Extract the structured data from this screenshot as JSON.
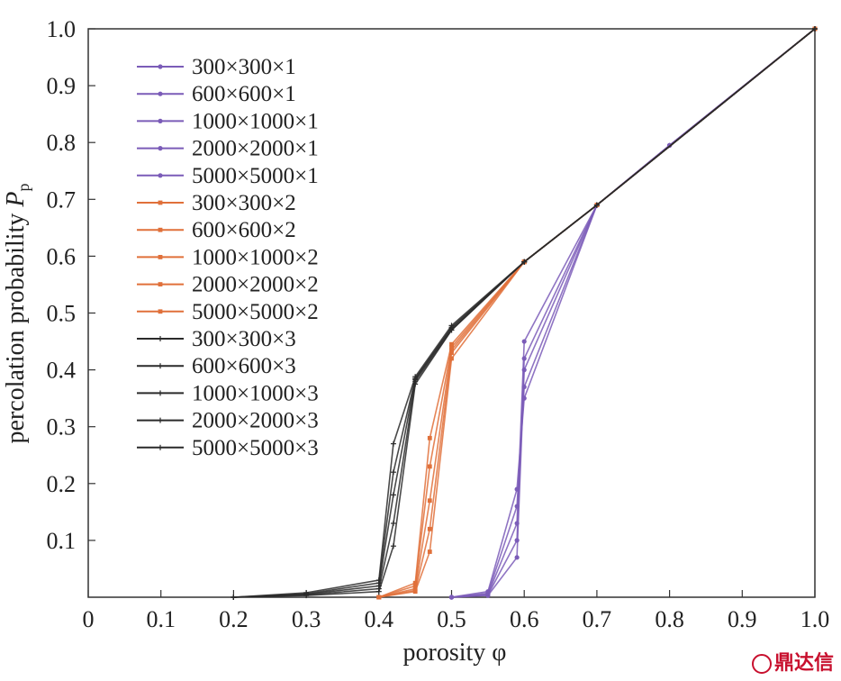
{
  "chart_data": {
    "type": "line",
    "xlabel": "porosity φ",
    "ylabel_main": "percolation probability ",
    "ylabel_symbol": "P",
    "ylabel_subscript": "p",
    "xlim": [
      0,
      1.0
    ],
    "ylim": [
      0,
      1.0
    ],
    "x_ticks": [
      "0",
      "0.1",
      "0.2",
      "0.3",
      "0.4",
      "0.5",
      "0.6",
      "0.7",
      "0.8",
      "0.9",
      "1.0"
    ],
    "y_ticks": [
      "0.1",
      "0.2",
      "0.3",
      "0.4",
      "0.5",
      "0.6",
      "0.7",
      "0.8",
      "0.9",
      "1.0"
    ],
    "grid": false,
    "legend_position": "top-left",
    "colors": {
      "group1": "#7b5cb8",
      "group2": "#e0703a",
      "group3": "#2a2a2a"
    },
    "series": [
      {
        "name": "300×300×1",
        "group": 1,
        "x": [
          0.5,
          0.55,
          0.59,
          0.6,
          0.7,
          0.8,
          1.0
        ],
        "y": [
          0.0,
          0.003,
          0.07,
          0.4,
          0.69,
          0.795,
          1.0
        ]
      },
      {
        "name": "600×600×1",
        "group": 1,
        "x": [
          0.5,
          0.55,
          0.59,
          0.6,
          0.7,
          0.8,
          1.0
        ],
        "y": [
          0.0,
          0.004,
          0.1,
          0.42,
          0.69,
          0.795,
          1.0
        ]
      },
      {
        "name": "1000×1000×1",
        "group": 1,
        "x": [
          0.5,
          0.55,
          0.59,
          0.6,
          0.7,
          0.8,
          1.0
        ],
        "y": [
          0.0,
          0.005,
          0.13,
          0.45,
          0.69,
          0.795,
          1.0
        ]
      },
      {
        "name": "2000×2000×1",
        "group": 1,
        "x": [
          0.5,
          0.55,
          0.59,
          0.6,
          0.7,
          0.8,
          1.0
        ],
        "y": [
          0.0,
          0.007,
          0.16,
          0.37,
          0.69,
          0.795,
          1.0
        ]
      },
      {
        "name": "5000×5000×1",
        "group": 1,
        "x": [
          0.5,
          0.55,
          0.59,
          0.6,
          0.7,
          0.8,
          1.0
        ],
        "y": [
          0.0,
          0.01,
          0.19,
          0.35,
          0.69,
          0.795,
          1.0
        ]
      },
      {
        "name": "300×300×2",
        "group": 2,
        "x": [
          0.4,
          0.45,
          0.47,
          0.5,
          0.6,
          0.7,
          1.0
        ],
        "y": [
          0.0,
          0.01,
          0.08,
          0.42,
          0.59,
          0.69,
          1.0
        ]
      },
      {
        "name": "600×600×2",
        "group": 2,
        "x": [
          0.4,
          0.45,
          0.47,
          0.5,
          0.6,
          0.7,
          1.0
        ],
        "y": [
          0.0,
          0.012,
          0.12,
          0.43,
          0.59,
          0.69,
          1.0
        ]
      },
      {
        "name": "1000×1000×2",
        "group": 2,
        "x": [
          0.4,
          0.45,
          0.47,
          0.5,
          0.6,
          0.7,
          1.0
        ],
        "y": [
          0.0,
          0.015,
          0.17,
          0.435,
          0.59,
          0.69,
          1.0
        ]
      },
      {
        "name": "2000×2000×2",
        "group": 2,
        "x": [
          0.4,
          0.45,
          0.47,
          0.5,
          0.6,
          0.7,
          1.0
        ],
        "y": [
          0.0,
          0.02,
          0.23,
          0.44,
          0.59,
          0.69,
          1.0
        ]
      },
      {
        "name": "5000×5000×2",
        "group": 2,
        "x": [
          0.4,
          0.45,
          0.47,
          0.5,
          0.6,
          0.7,
          1.0
        ],
        "y": [
          0.0,
          0.025,
          0.28,
          0.445,
          0.59,
          0.69,
          1.0
        ]
      },
      {
        "name": "300×300×3",
        "group": 3,
        "x": [
          0.2,
          0.3,
          0.4,
          0.42,
          0.45,
          0.5,
          0.6,
          0.7,
          1.0
        ],
        "y": [
          0.0,
          0.003,
          0.01,
          0.09,
          0.375,
          0.47,
          0.59,
          0.69,
          1.0
        ]
      },
      {
        "name": "600×600×3",
        "group": 3,
        "x": [
          0.2,
          0.3,
          0.4,
          0.42,
          0.45,
          0.5,
          0.6,
          0.7,
          1.0
        ],
        "y": [
          0.0,
          0.004,
          0.015,
          0.13,
          0.38,
          0.47,
          0.59,
          0.69,
          1.0
        ]
      },
      {
        "name": "1000×1000×3",
        "group": 3,
        "x": [
          0.2,
          0.3,
          0.4,
          0.42,
          0.45,
          0.5,
          0.6,
          0.7,
          1.0
        ],
        "y": [
          0.0,
          0.005,
          0.02,
          0.18,
          0.383,
          0.473,
          0.59,
          0.69,
          1.0
        ]
      },
      {
        "name": "2000×2000×3",
        "group": 3,
        "x": [
          0.2,
          0.3,
          0.4,
          0.42,
          0.45,
          0.5,
          0.6,
          0.7,
          1.0
        ],
        "y": [
          0.0,
          0.006,
          0.025,
          0.22,
          0.385,
          0.475,
          0.59,
          0.69,
          1.0
        ]
      },
      {
        "name": "5000×5000×3",
        "group": 3,
        "x": [
          0.2,
          0.3,
          0.4,
          0.42,
          0.45,
          0.5,
          0.6,
          0.7,
          1.0
        ],
        "y": [
          0.0,
          0.008,
          0.03,
          0.27,
          0.388,
          0.478,
          0.59,
          0.69,
          1.0
        ]
      }
    ]
  },
  "watermark": {
    "text": "鼎达信",
    "icon": "logo-badge-icon"
  }
}
